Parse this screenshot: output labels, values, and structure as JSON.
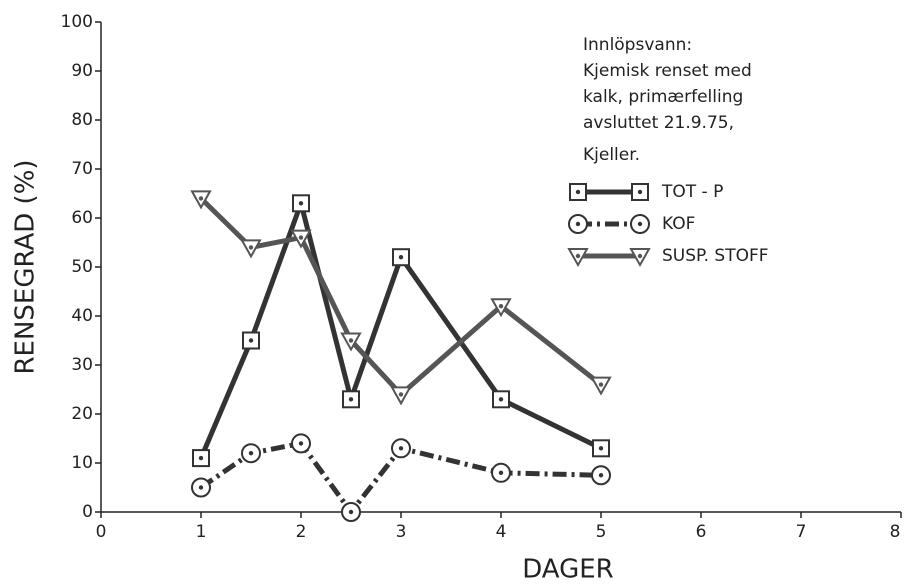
{
  "chart_data": {
    "type": "line",
    "xlabel": "DAGER",
    "ylabel": "RENSEGRAD (%)",
    "annotation": [
      "Innlöpsvann:",
      "Kjemisk renset med",
      "kalk, primærfelling",
      "avsluttet 21.9.75,",
      "Kjeller."
    ],
    "x": [
      1,
      1.5,
      2,
      2.5,
      3,
      4,
      5
    ],
    "series": [
      {
        "name": "TOT - P",
        "color": "#333333",
        "marker": "square",
        "line_style": "solid",
        "values": [
          11,
          35,
          63,
          23,
          52,
          23,
          13
        ]
      },
      {
        "name": "KOF",
        "color": "#333333",
        "marker": "circle",
        "line_style": "dashdot",
        "values": [
          5,
          12,
          14,
          0,
          13,
          8,
          7.5
        ]
      },
      {
        "name": "SUSP. STOFF",
        "color": "#555555",
        "marker": "triangle",
        "line_style": "solid",
        "values": [
          64,
          54,
          56,
          35,
          24,
          42,
          26
        ]
      }
    ],
    "xlim": [
      0,
      8
    ],
    "xticks": [
      0,
      1,
      2,
      3,
      4,
      5,
      6,
      7,
      8
    ],
    "ylim": [
      0,
      100
    ],
    "yticks": [
      0,
      10,
      20,
      30,
      40,
      50,
      60,
      70,
      80,
      90,
      100
    ]
  }
}
